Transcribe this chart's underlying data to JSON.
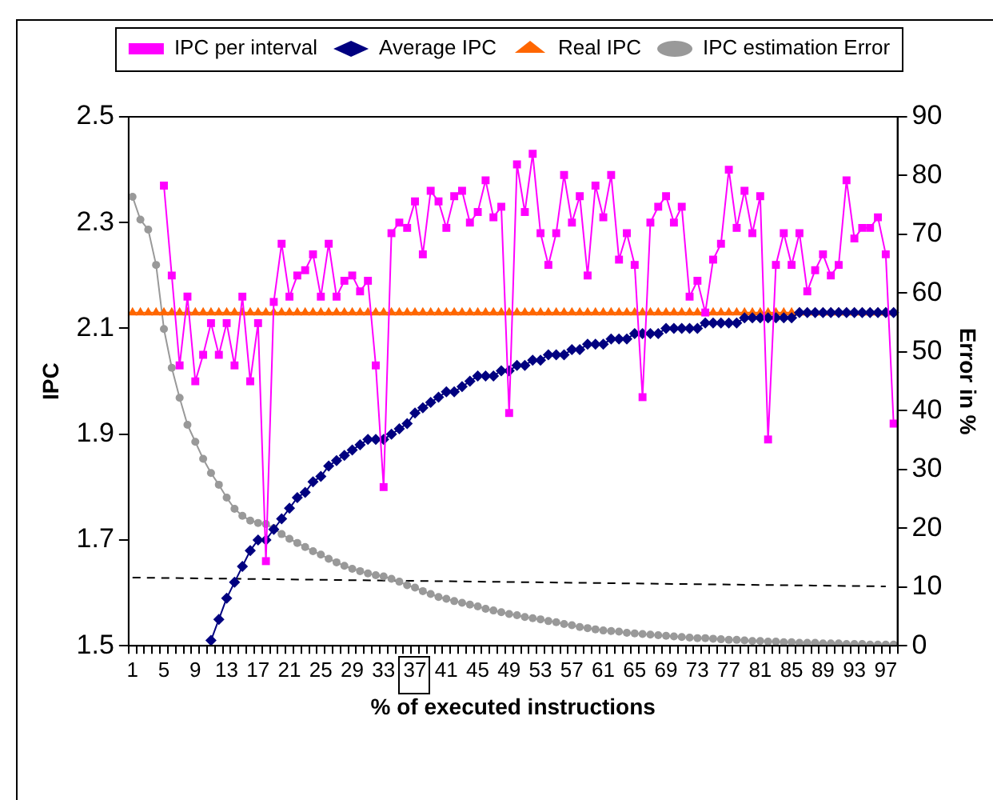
{
  "chart_data": {
    "type": "line",
    "xlabel": "% of executed instructions",
    "ylabel": "IPC",
    "y2label": "Error in %",
    "categories": [
      "1",
      null,
      null,
      null,
      "5",
      null,
      null,
      null,
      "9",
      null,
      null,
      null,
      "13",
      null,
      null,
      null,
      "17",
      null,
      null,
      null,
      "21",
      null,
      null,
      null,
      "25",
      null,
      null,
      null,
      "29",
      null,
      null,
      null,
      "33",
      null,
      null,
      null,
      "37",
      null,
      null,
      null,
      "41",
      null,
      null,
      null,
      "45",
      null,
      null,
      null,
      "49",
      null,
      null,
      null,
      "53",
      null,
      null,
      null,
      "57",
      null,
      null,
      null,
      "61",
      null,
      null,
      null,
      "65",
      null,
      null,
      null,
      "69",
      null,
      null,
      null,
      "73",
      null,
      null,
      null,
      "77",
      null,
      null,
      null,
      "81",
      null,
      null,
      null,
      "85",
      null,
      null,
      null,
      "89",
      null,
      null,
      null,
      "93",
      null,
      null,
      null,
      "97",
      null
    ],
    "series": [
      {
        "name": "IPC per interval",
        "color": "#ff00ff",
        "marker": "square",
        "values": [
          null,
          null,
          null,
          null,
          2.37,
          2.2,
          2.03,
          2.16,
          2.0,
          2.05,
          2.11,
          2.05,
          2.11,
          2.03,
          2.16,
          2.0,
          2.11,
          1.66,
          2.15,
          2.26,
          2.16,
          2.2,
          2.21,
          2.24,
          2.16,
          2.26,
          2.16,
          2.19,
          2.2,
          2.17,
          2.19,
          2.03,
          1.8,
          2.28,
          2.3,
          2.29,
          2.34,
          2.24,
          2.36,
          2.34,
          2.29,
          2.35,
          2.36,
          2.3,
          2.32,
          2.38,
          2.31,
          2.33,
          1.94,
          2.41,
          2.32,
          2.43,
          2.28,
          2.22,
          2.28,
          2.39,
          2.3,
          2.35,
          2.2,
          2.37,
          2.31,
          2.39,
          2.23,
          2.28,
          2.22,
          1.97,
          2.3,
          2.33,
          2.35,
          2.3,
          2.33,
          2.16,
          2.19,
          2.13,
          2.23,
          2.26,
          2.4,
          2.29,
          2.36,
          2.28,
          2.35,
          1.89,
          2.22,
          2.28,
          2.22,
          2.28,
          2.17,
          2.21,
          2.24,
          2.2,
          2.22,
          2.38,
          2.27,
          2.29,
          2.29,
          2.31,
          2.24,
          1.92
        ]
      },
      {
        "name": "Average IPC",
        "color": "#000080",
        "marker": "diamond",
        "values": [
          null,
          null,
          null,
          null,
          null,
          null,
          null,
          null,
          null,
          null,
          1.51,
          1.55,
          1.59,
          1.62,
          1.65,
          1.68,
          1.7,
          1.7,
          1.72,
          1.74,
          1.76,
          1.78,
          1.79,
          1.81,
          1.82,
          1.84,
          1.85,
          1.86,
          1.87,
          1.88,
          1.89,
          1.89,
          1.89,
          1.9,
          1.91,
          1.92,
          1.94,
          1.95,
          1.96,
          1.97,
          1.98,
          1.98,
          1.99,
          2.0,
          2.01,
          2.01,
          2.01,
          2.02,
          2.02,
          2.03,
          2.03,
          2.04,
          2.04,
          2.05,
          2.05,
          2.05,
          2.06,
          2.06,
          2.07,
          2.07,
          2.07,
          2.08,
          2.08,
          2.08,
          2.09,
          2.09,
          2.09,
          2.09,
          2.1,
          2.1,
          2.1,
          2.1,
          2.1,
          2.11,
          2.11,
          2.11,
          2.11,
          2.11,
          2.12,
          2.12,
          2.12,
          2.12,
          2.12,
          2.12,
          2.12,
          2.13,
          2.13,
          2.13,
          2.13,
          2.13,
          2.13,
          2.13,
          2.13,
          2.13,
          2.13,
          2.13,
          2.13,
          2.13
        ]
      },
      {
        "name": "Real IPC",
        "color": "#ff6600",
        "marker": "triangle",
        "values": [
          2.13,
          2.13,
          2.13,
          2.13,
          2.13,
          2.13,
          2.13,
          2.13,
          2.13,
          2.13,
          2.13,
          2.13,
          2.13,
          2.13,
          2.13,
          2.13,
          2.13,
          2.13,
          2.13,
          2.13,
          2.13,
          2.13,
          2.13,
          2.13,
          2.13,
          2.13,
          2.13,
          2.13,
          2.13,
          2.13,
          2.13,
          2.13,
          2.13,
          2.13,
          2.13,
          2.13,
          2.13,
          2.13,
          2.13,
          2.13,
          2.13,
          2.13,
          2.13,
          2.13,
          2.13,
          2.13,
          2.13,
          2.13,
          2.13,
          2.13,
          2.13,
          2.13,
          2.13,
          2.13,
          2.13,
          2.13,
          2.13,
          2.13,
          2.13,
          2.13,
          2.13,
          2.13,
          2.13,
          2.13,
          2.13,
          2.13,
          2.13,
          2.13,
          2.13,
          2.13,
          2.13,
          2.13,
          2.13,
          2.13,
          2.13,
          2.13,
          2.13,
          2.13,
          2.13,
          2.13,
          2.13,
          2.13,
          2.13,
          2.13,
          2.13,
          2.13,
          2.13,
          2.13,
          2.13,
          2.13,
          2.13,
          2.13,
          2.13,
          2.13,
          2.13,
          2.13,
          2.13,
          2.13
        ]
      },
      {
        "name": "IPC estimation Error",
        "color": "#999999",
        "marker": "circle",
        "axis": "y2",
        "values": [
          76.4,
          72.5,
          70.8,
          64.8,
          53.9,
          47.3,
          42.2,
          37.6,
          34.7,
          31.8,
          29.4,
          27.4,
          25.2,
          23.3,
          22.1,
          21.3,
          20.9,
          20.7,
          20.0,
          19.0,
          18.2,
          17.5,
          16.8,
          16.1,
          15.5,
          14.8,
          14.2,
          13.6,
          13.1,
          12.7,
          12.3,
          12.0,
          11.8,
          11.4,
          10.9,
          10.3,
          9.9,
          9.3,
          8.8,
          8.3,
          8.0,
          7.6,
          7.3,
          7.0,
          6.7,
          6.3,
          6.0,
          5.7,
          5.4,
          5.2,
          4.9,
          4.7,
          4.5,
          4.2,
          4.0,
          3.7,
          3.5,
          3.2,
          3.0,
          2.8,
          2.6,
          2.5,
          2.4,
          2.2,
          2.1,
          2.0,
          1.9,
          1.8,
          1.7,
          1.6,
          1.5,
          1.4,
          1.3,
          1.3,
          1.2,
          1.1,
          1.0,
          1.0,
          0.9,
          0.8,
          0.8,
          0.7,
          0.7,
          0.6,
          0.6,
          0.5,
          0.5,
          0.5,
          0.4,
          0.4,
          0.4,
          0.3,
          0.3,
          0.3,
          0.2,
          0.2,
          0.2,
          0.2
        ]
      },
      {
        "color": "#000000",
        "marker": "none",
        "line_style": "dashed",
        "axis": "y2",
        "x": [
          "1",
          "97"
        ],
        "values": [
          11.6,
          10.1
        ]
      }
    ],
    "ylim": [
      1.5,
      2.5
    ],
    "yticks": [
      1.5,
      1.7,
      1.9,
      2.1,
      2.3,
      2.5
    ],
    "y2lim": [
      0,
      90
    ],
    "y2ticks": [
      0,
      10,
      20,
      30,
      40,
      50,
      60,
      70,
      80,
      90
    ],
    "grid": false,
    "legend": "top"
  }
}
